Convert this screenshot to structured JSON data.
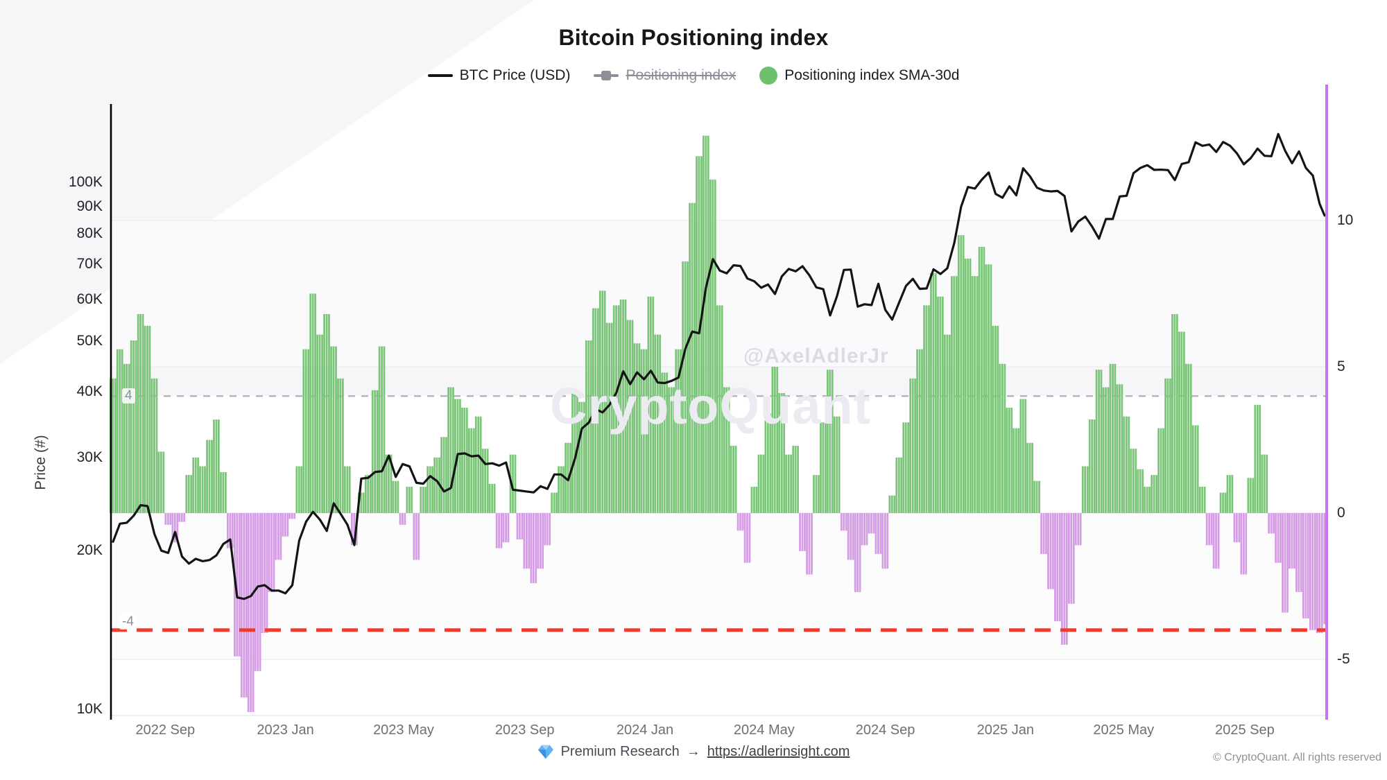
{
  "title": "Bitcoin Positioning index",
  "legend": {
    "btc_price_label": "BTC Price (USD)",
    "positioning_index_label": "Positioning index",
    "sma_label": "Positioning index SMA-30d"
  },
  "watermark": {
    "handle": "@AxelAdlerJr",
    "brand": "CryptoQuant"
  },
  "footer": {
    "premium_text": "Premium Research",
    "arrow": "→",
    "link_text": "https://adlerinsight.com",
    "copyright": "© CryptoQuant. All rights reserved"
  },
  "colors": {
    "price_line": "#141414",
    "bar_positive": "#7ac578",
    "bar_negative": "#d49ce4",
    "upper_threshold_line": "#b6b6c2",
    "lower_threshold_line": "#f03b2e",
    "right_spine": "#c873e8",
    "left_spine": "#000000"
  },
  "chart_data": {
    "type": "mixed",
    "title": "Bitcoin Positioning index",
    "x_range": [
      "2022-07-10",
      "2025-11-21"
    ],
    "left_axis": {
      "label": "Price (#)",
      "scale": "log",
      "ticks": [
        {
          "label": "100K",
          "v": 100000
        },
        {
          "label": "90K",
          "v": 90000
        },
        {
          "label": "80K",
          "v": 80000
        },
        {
          "label": "70K",
          "v": 70000
        },
        {
          "label": "60K",
          "v": 60000
        },
        {
          "label": "50K",
          "v": 50000
        },
        {
          "label": "40K",
          "v": 40000
        },
        {
          "label": "30K",
          "v": 30000
        },
        {
          "label": "20K",
          "v": 20000
        },
        {
          "label": "10K",
          "v": 10000
        }
      ]
    },
    "right_axis": {
      "scale": "linear",
      "ticks": [
        {
          "label": "10",
          "v": 10
        },
        {
          "label": "5",
          "v": 5
        },
        {
          "label": "0",
          "v": 0
        },
        {
          "label": "-5",
          "v": -5
        }
      ],
      "upper_threshold": {
        "label": "4",
        "v": 4
      },
      "lower_threshold": {
        "label": "-4",
        "v": -4
      }
    },
    "x_axis": {
      "ticks": [
        {
          "label": "2022 Sep",
          "d": "2022-09-01"
        },
        {
          "label": "2023 Jan",
          "d": "2023-01-01"
        },
        {
          "label": "2023 May",
          "d": "2023-05-01"
        },
        {
          "label": "2023 Sep",
          "d": "2023-09-01"
        },
        {
          "label": "2024 Jan",
          "d": "2024-01-01"
        },
        {
          "label": "2024 May",
          "d": "2024-05-01"
        },
        {
          "label": "2024 Sep",
          "d": "2024-09-01"
        },
        {
          "label": "2025 Jan",
          "d": "2025-01-01"
        },
        {
          "label": "2025 May",
          "d": "2025-05-01"
        },
        {
          "label": "2025 Sep",
          "d": "2025-09-01"
        }
      ]
    },
    "series": [
      {
        "name": "BTC Price (USD)",
        "type": "line",
        "axis": "left",
        "visible": true
      },
      {
        "name": "Positioning index",
        "type": "bar",
        "axis": "right",
        "visible": false
      },
      {
        "name": "Positioning index SMA-30d",
        "type": "bar",
        "axis": "right",
        "visible": true
      }
    ],
    "points_format": [
      "date",
      "btc_price_usd",
      "positioning_index_sma30d"
    ],
    "points": [
      [
        "2022-07-10",
        20800,
        4.6
      ],
      [
        "2022-07-17",
        22500,
        5.6
      ],
      [
        "2022-07-24",
        22600,
        5.1
      ],
      [
        "2022-07-31",
        23300,
        5.9
      ],
      [
        "2022-08-07",
        24400,
        6.8
      ],
      [
        "2022-08-14",
        24300,
        6.4
      ],
      [
        "2022-08-21",
        21500,
        4.6
      ],
      [
        "2022-08-28",
        20000,
        2.1
      ],
      [
        "2022-09-04",
        19800,
        -0.4
      ],
      [
        "2022-09-11",
        21700,
        -1.0
      ],
      [
        "2022-09-18",
        19500,
        -0.3
      ],
      [
        "2022-09-25",
        18900,
        1.3
      ],
      [
        "2022-10-02",
        19300,
        1.9
      ],
      [
        "2022-10-09",
        19100,
        1.6
      ],
      [
        "2022-10-16",
        19200,
        2.5
      ],
      [
        "2022-10-23",
        19600,
        3.2
      ],
      [
        "2022-10-30",
        20600,
        1.4
      ],
      [
        "2022-11-06",
        21000,
        -1.2
      ],
      [
        "2022-11-13",
        16300,
        -4.9
      ],
      [
        "2022-11-20",
        16200,
        -6.3
      ],
      [
        "2022-11-27",
        16400,
        -6.8
      ],
      [
        "2022-12-04",
        17100,
        -5.4
      ],
      [
        "2022-12-11",
        17200,
        -4.1
      ],
      [
        "2022-12-18",
        16800,
        -2.7
      ],
      [
        "2022-12-25",
        16800,
        -1.6
      ],
      [
        "2023-01-01",
        16600,
        -0.8
      ],
      [
        "2023-01-08",
        17200,
        -0.2
      ],
      [
        "2023-01-15",
        20900,
        1.6
      ],
      [
        "2023-01-22",
        22700,
        5.6
      ],
      [
        "2023-01-29",
        23700,
        7.5
      ],
      [
        "2023-02-05",
        22900,
        6.1
      ],
      [
        "2023-02-12",
        21800,
        6.8
      ],
      [
        "2023-02-19",
        24600,
        5.7
      ],
      [
        "2023-02-26",
        23500,
        4.6
      ],
      [
        "2023-03-05",
        22400,
        1.6
      ],
      [
        "2023-03-12",
        20500,
        -1.1
      ],
      [
        "2023-03-19",
        27400,
        0.7
      ],
      [
        "2023-03-26",
        27500,
        1.3
      ],
      [
        "2023-04-02",
        28200,
        4.2
      ],
      [
        "2023-04-09",
        28300,
        5.7
      ],
      [
        "2023-04-16",
        30300,
        2.0
      ],
      [
        "2023-04-23",
        27600,
        1.1
      ],
      [
        "2023-04-30",
        29200,
        -0.4
      ],
      [
        "2023-05-07",
        28900,
        0.9
      ],
      [
        "2023-05-14",
        26900,
        -1.6
      ],
      [
        "2023-05-21",
        26800,
        0.9
      ],
      [
        "2023-05-28",
        27700,
        1.6
      ],
      [
        "2023-06-04",
        27100,
        1.9
      ],
      [
        "2023-06-11",
        25900,
        2.6
      ],
      [
        "2023-06-18",
        26300,
        4.3
      ],
      [
        "2023-06-25",
        30500,
        3.9
      ],
      [
        "2023-07-02",
        30600,
        3.6
      ],
      [
        "2023-07-09",
        30200,
        2.9
      ],
      [
        "2023-07-16",
        30300,
        3.3
      ],
      [
        "2023-07-23",
        29200,
        2.2
      ],
      [
        "2023-07-30",
        29300,
        1.0
      ],
      [
        "2023-08-06",
        29000,
        -1.2
      ],
      [
        "2023-08-13",
        29400,
        -1.0
      ],
      [
        "2023-08-20",
        26100,
        2.0
      ],
      [
        "2023-08-27",
        26000,
        -0.9
      ],
      [
        "2023-09-03",
        25900,
        -1.9
      ],
      [
        "2023-09-10",
        25800,
        -2.4
      ],
      [
        "2023-09-17",
        26500,
        -1.9
      ],
      [
        "2023-09-24",
        26200,
        -1.1
      ],
      [
        "2023-10-01",
        27900,
        0.7
      ],
      [
        "2023-10-08",
        27900,
        1.6
      ],
      [
        "2023-10-15",
        27200,
        2.4
      ],
      [
        "2023-10-22",
        29900,
        4.1
      ],
      [
        "2023-10-29",
        34100,
        3.8
      ],
      [
        "2023-11-05",
        35000,
        5.9
      ],
      [
        "2023-11-12",
        37100,
        7.0
      ],
      [
        "2023-11-19",
        36600,
        7.6
      ],
      [
        "2023-11-26",
        37800,
        6.5
      ],
      [
        "2023-12-03",
        39900,
        7.1
      ],
      [
        "2023-12-10",
        43800,
        7.3
      ],
      [
        "2023-12-17",
        41400,
        6.6
      ],
      [
        "2023-12-24",
        43600,
        5.8
      ],
      [
        "2023-12-31",
        42300,
        5.6
      ],
      [
        "2024-01-07",
        43900,
        7.4
      ],
      [
        "2024-01-14",
        41700,
        6.1
      ],
      [
        "2024-01-21",
        41600,
        4.8
      ],
      [
        "2024-01-28",
        42000,
        4.3
      ],
      [
        "2024-02-04",
        42600,
        5.6
      ],
      [
        "2024-02-11",
        48300,
        8.6
      ],
      [
        "2024-02-18",
        52100,
        10.6
      ],
      [
        "2024-02-25",
        51700,
        12.2
      ],
      [
        "2024-03-03",
        63200,
        12.9
      ],
      [
        "2024-03-10",
        71500,
        11.4
      ],
      [
        "2024-03-17",
        68000,
        7.1
      ],
      [
        "2024-03-24",
        67200,
        4.3
      ],
      [
        "2024-03-31",
        69600,
        2.3
      ],
      [
        "2024-04-07",
        69400,
        -0.6
      ],
      [
        "2024-04-14",
        65700,
        -1.7
      ],
      [
        "2024-04-21",
        64900,
        0.9
      ],
      [
        "2024-04-28",
        63100,
        2.0
      ],
      [
        "2024-05-05",
        64000,
        3.4
      ],
      [
        "2024-05-12",
        61400,
        5.0
      ],
      [
        "2024-05-19",
        66300,
        4.1
      ],
      [
        "2024-05-26",
        68500,
        2.0
      ],
      [
        "2024-06-02",
        67800,
        2.3
      ],
      [
        "2024-06-09",
        69300,
        -1.3
      ],
      [
        "2024-06-16",
        66600,
        -2.1
      ],
      [
        "2024-06-23",
        63200,
        1.3
      ],
      [
        "2024-06-30",
        62700,
        3.1
      ],
      [
        "2024-07-07",
        55900,
        4.9
      ],
      [
        "2024-07-14",
        60800,
        3.3
      ],
      [
        "2024-07-21",
        68200,
        -0.6
      ],
      [
        "2024-07-28",
        68300,
        -1.6
      ],
      [
        "2024-08-04",
        58100,
        -2.7
      ],
      [
        "2024-08-11",
        58700,
        -1.1
      ],
      [
        "2024-08-18",
        58500,
        -0.7
      ],
      [
        "2024-08-25",
        64200,
        -1.4
      ],
      [
        "2024-09-01",
        57300,
        -1.9
      ],
      [
        "2024-09-08",
        54900,
        0.6
      ],
      [
        "2024-09-15",
        59100,
        1.9
      ],
      [
        "2024-09-22",
        63600,
        3.1
      ],
      [
        "2024-09-29",
        65600,
        4.6
      ],
      [
        "2024-10-06",
        62800,
        5.6
      ],
      [
        "2024-10-13",
        62900,
        7.1
      ],
      [
        "2024-10-20",
        68400,
        8.2
      ],
      [
        "2024-10-27",
        67000,
        7.4
      ],
      [
        "2024-11-03",
        68700,
        6.1
      ],
      [
        "2024-11-10",
        76700,
        8.1
      ],
      [
        "2024-11-17",
        89900,
        9.5
      ],
      [
        "2024-11-24",
        98000,
        8.7
      ],
      [
        "2024-12-01",
        97300,
        8.1
      ],
      [
        "2024-12-08",
        101200,
        9.1
      ],
      [
        "2024-12-15",
        104400,
        8.5
      ],
      [
        "2024-12-22",
        95100,
        6.4
      ],
      [
        "2024-12-29",
        93500,
        5.1
      ],
      [
        "2025-01-05",
        98300,
        3.6
      ],
      [
        "2025-01-12",
        94500,
        2.9
      ],
      [
        "2025-01-19",
        106300,
        3.9
      ],
      [
        "2025-01-26",
        102600,
        2.4
      ],
      [
        "2025-02-02",
        97700,
        1.1
      ],
      [
        "2025-02-09",
        96500,
        -1.4
      ],
      [
        "2025-02-16",
        96100,
        -2.6
      ],
      [
        "2025-02-23",
        96300,
        -3.7
      ],
      [
        "2025-03-02",
        94200,
        -4.5
      ],
      [
        "2025-03-09",
        80700,
        -3.1
      ],
      [
        "2025-03-16",
        84300,
        -1.1
      ],
      [
        "2025-03-23",
        86100,
        1.6
      ],
      [
        "2025-03-30",
        82400,
        3.2
      ],
      [
        "2025-04-06",
        78200,
        4.9
      ],
      [
        "2025-04-13",
        85200,
        4.3
      ],
      [
        "2025-04-20",
        85200,
        5.1
      ],
      [
        "2025-04-27",
        94000,
        4.4
      ],
      [
        "2025-05-04",
        94300,
        3.3
      ],
      [
        "2025-05-11",
        104100,
        2.2
      ],
      [
        "2025-05-18",
        106500,
        1.5
      ],
      [
        "2025-05-25",
        107800,
        0.9
      ],
      [
        "2025-06-01",
        105600,
        1.3
      ],
      [
        "2025-06-08",
        105700,
        2.9
      ],
      [
        "2025-06-15",
        105500,
        4.6
      ],
      [
        "2025-06-22",
        101000,
        6.8
      ],
      [
        "2025-06-29",
        108400,
        6.2
      ],
      [
        "2025-07-06",
        109200,
        5.1
      ],
      [
        "2025-07-13",
        119100,
        3.0
      ],
      [
        "2025-07-20",
        117300,
        0.9
      ],
      [
        "2025-07-27",
        118000,
        -1.1
      ],
      [
        "2025-08-03",
        114200,
        -1.9
      ],
      [
        "2025-08-10",
        119300,
        0.7
      ],
      [
        "2025-08-17",
        117400,
        1.3
      ],
      [
        "2025-08-24",
        113500,
        -1.0
      ],
      [
        "2025-08-31",
        108200,
        -2.1
      ],
      [
        "2025-09-07",
        111200,
        1.2
      ],
      [
        "2025-09-14",
        115900,
        3.7
      ],
      [
        "2025-09-21",
        112300,
        2.0
      ],
      [
        "2025-09-28",
        112100,
        -0.7
      ],
      [
        "2025-10-05",
        123500,
        -1.7
      ],
      [
        "2025-10-12",
        114700,
        -3.4
      ],
      [
        "2025-10-19",
        108700,
        -1.9
      ],
      [
        "2025-10-26",
        114500,
        -2.7
      ],
      [
        "2025-11-02",
        106500,
        -3.6
      ],
      [
        "2025-11-09",
        103000,
        -4.0
      ],
      [
        "2025-11-16",
        91000,
        -4.1
      ],
      [
        "2025-11-21",
        86500,
        -3.8
      ]
    ]
  }
}
